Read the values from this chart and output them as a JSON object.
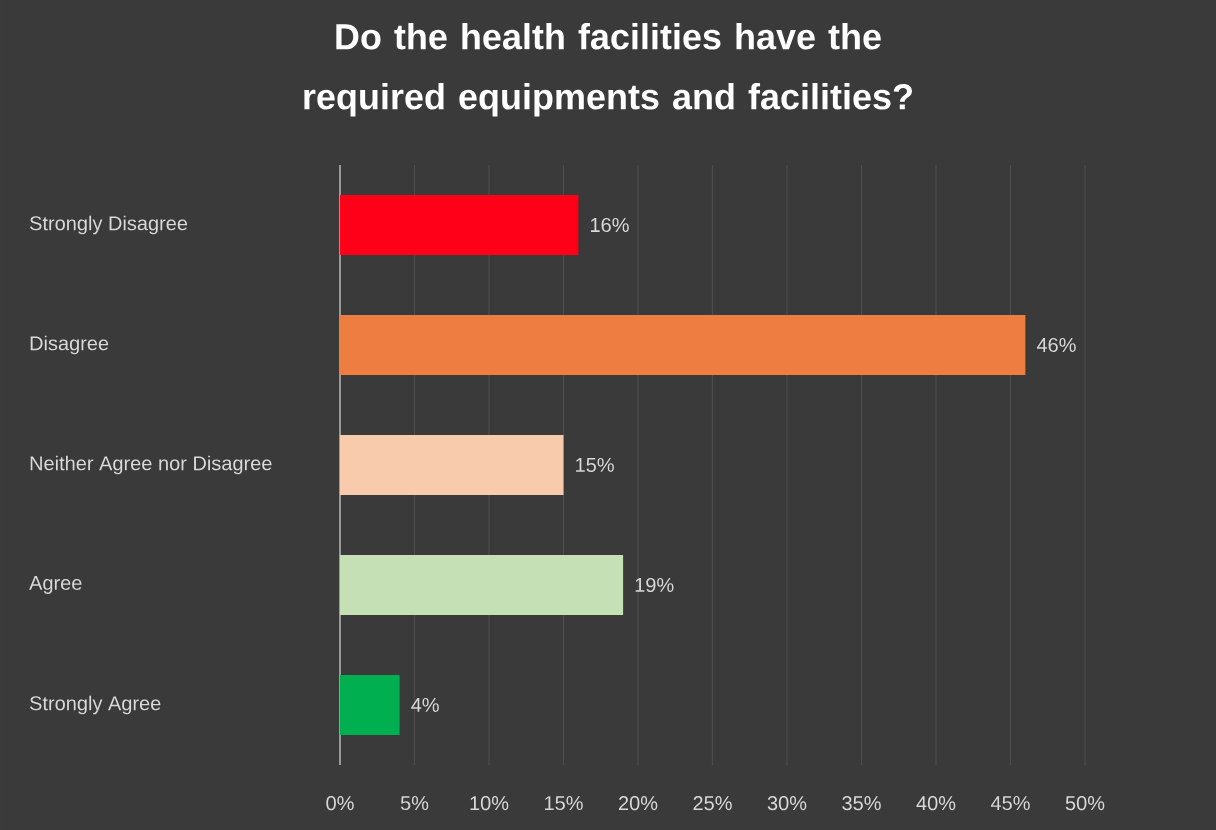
{
  "chart_data": {
    "type": "bar",
    "orientation": "horizontal",
    "title": "Do the health facilities have the required equipments and facilities?",
    "categories": [
      "Strongly Disagree",
      "Disagree",
      "Neither Agree nor Disagree",
      "Agree",
      "Strongly Agree"
    ],
    "values": [
      16,
      46,
      15,
      19,
      4
    ],
    "colors": [
      "#ff0018",
      "#ed7d41",
      "#f8cbad",
      "#c5e0b4",
      "#00b050"
    ],
    "value_labels": [
      "16%",
      "46%",
      "15%",
      "19%",
      "4%"
    ],
    "xlim": [
      0,
      50
    ],
    "xticks": [
      {
        "value": 0,
        "label": "0%"
      },
      {
        "value": 5,
        "label": "5%"
      },
      {
        "value": 10,
        "label": "10%"
      },
      {
        "value": 15,
        "label": "15%"
      },
      {
        "value": 20,
        "label": "20%"
      },
      {
        "value": 25,
        "label": "25%"
      },
      {
        "value": 30,
        "label": "30%"
      },
      {
        "value": 35,
        "label": "35%"
      },
      {
        "value": 40,
        "label": "40%"
      },
      {
        "value": 45,
        "label": "45%"
      },
      {
        "value": 50,
        "label": "50%"
      }
    ],
    "grid": "x"
  }
}
